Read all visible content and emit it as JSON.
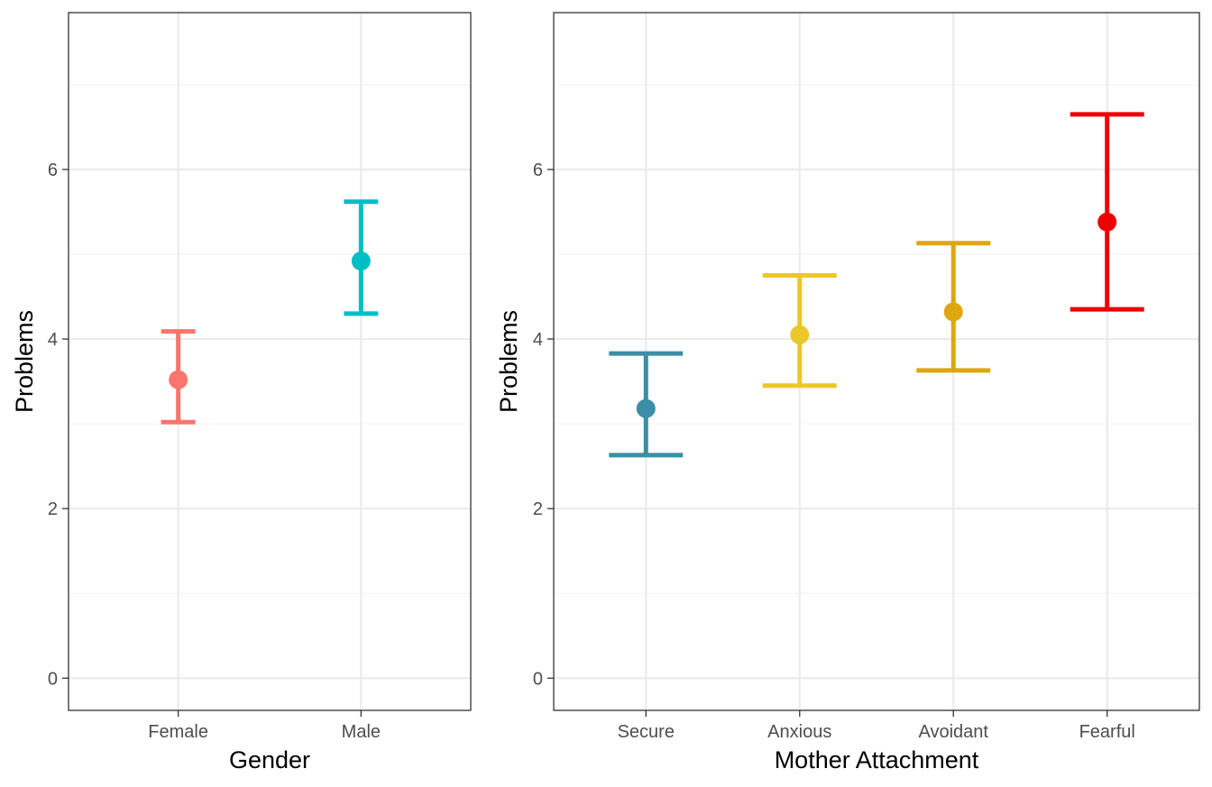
{
  "chart_data": [
    {
      "type": "scatter",
      "error_bars": true,
      "title": "",
      "xlabel": "Gender",
      "ylabel": "Problems",
      "categories": [
        "Female",
        "Male"
      ],
      "values": [
        3.52,
        4.92
      ],
      "lower": [
        3.02,
        4.3
      ],
      "upper": [
        4.09,
        5.62
      ],
      "colors": [
        "#F8766D",
        "#00BFC4"
      ],
      "ylim": [
        -0.38,
        7.85
      ],
      "yticks": [
        0,
        2,
        4,
        6
      ],
      "grid": true,
      "legend": "none"
    },
    {
      "type": "scatter",
      "error_bars": true,
      "title": "",
      "xlabel": "Mother Attachment",
      "ylabel": "Problems",
      "categories": [
        "Secure",
        "Anxious",
        "Avoidant",
        "Fearful"
      ],
      "values": [
        3.18,
        4.05,
        4.32,
        5.38
      ],
      "lower": [
        2.63,
        3.45,
        3.63,
        4.35
      ],
      "upper": [
        3.83,
        4.75,
        5.13,
        6.65
      ],
      "colors": [
        "#3B8EA5",
        "#EBC72B",
        "#DDA710",
        "#EE0000"
      ],
      "ylim": [
        -0.38,
        7.85
      ],
      "yticks": [
        0,
        2,
        4,
        6
      ],
      "grid": true,
      "legend": "none"
    }
  ]
}
